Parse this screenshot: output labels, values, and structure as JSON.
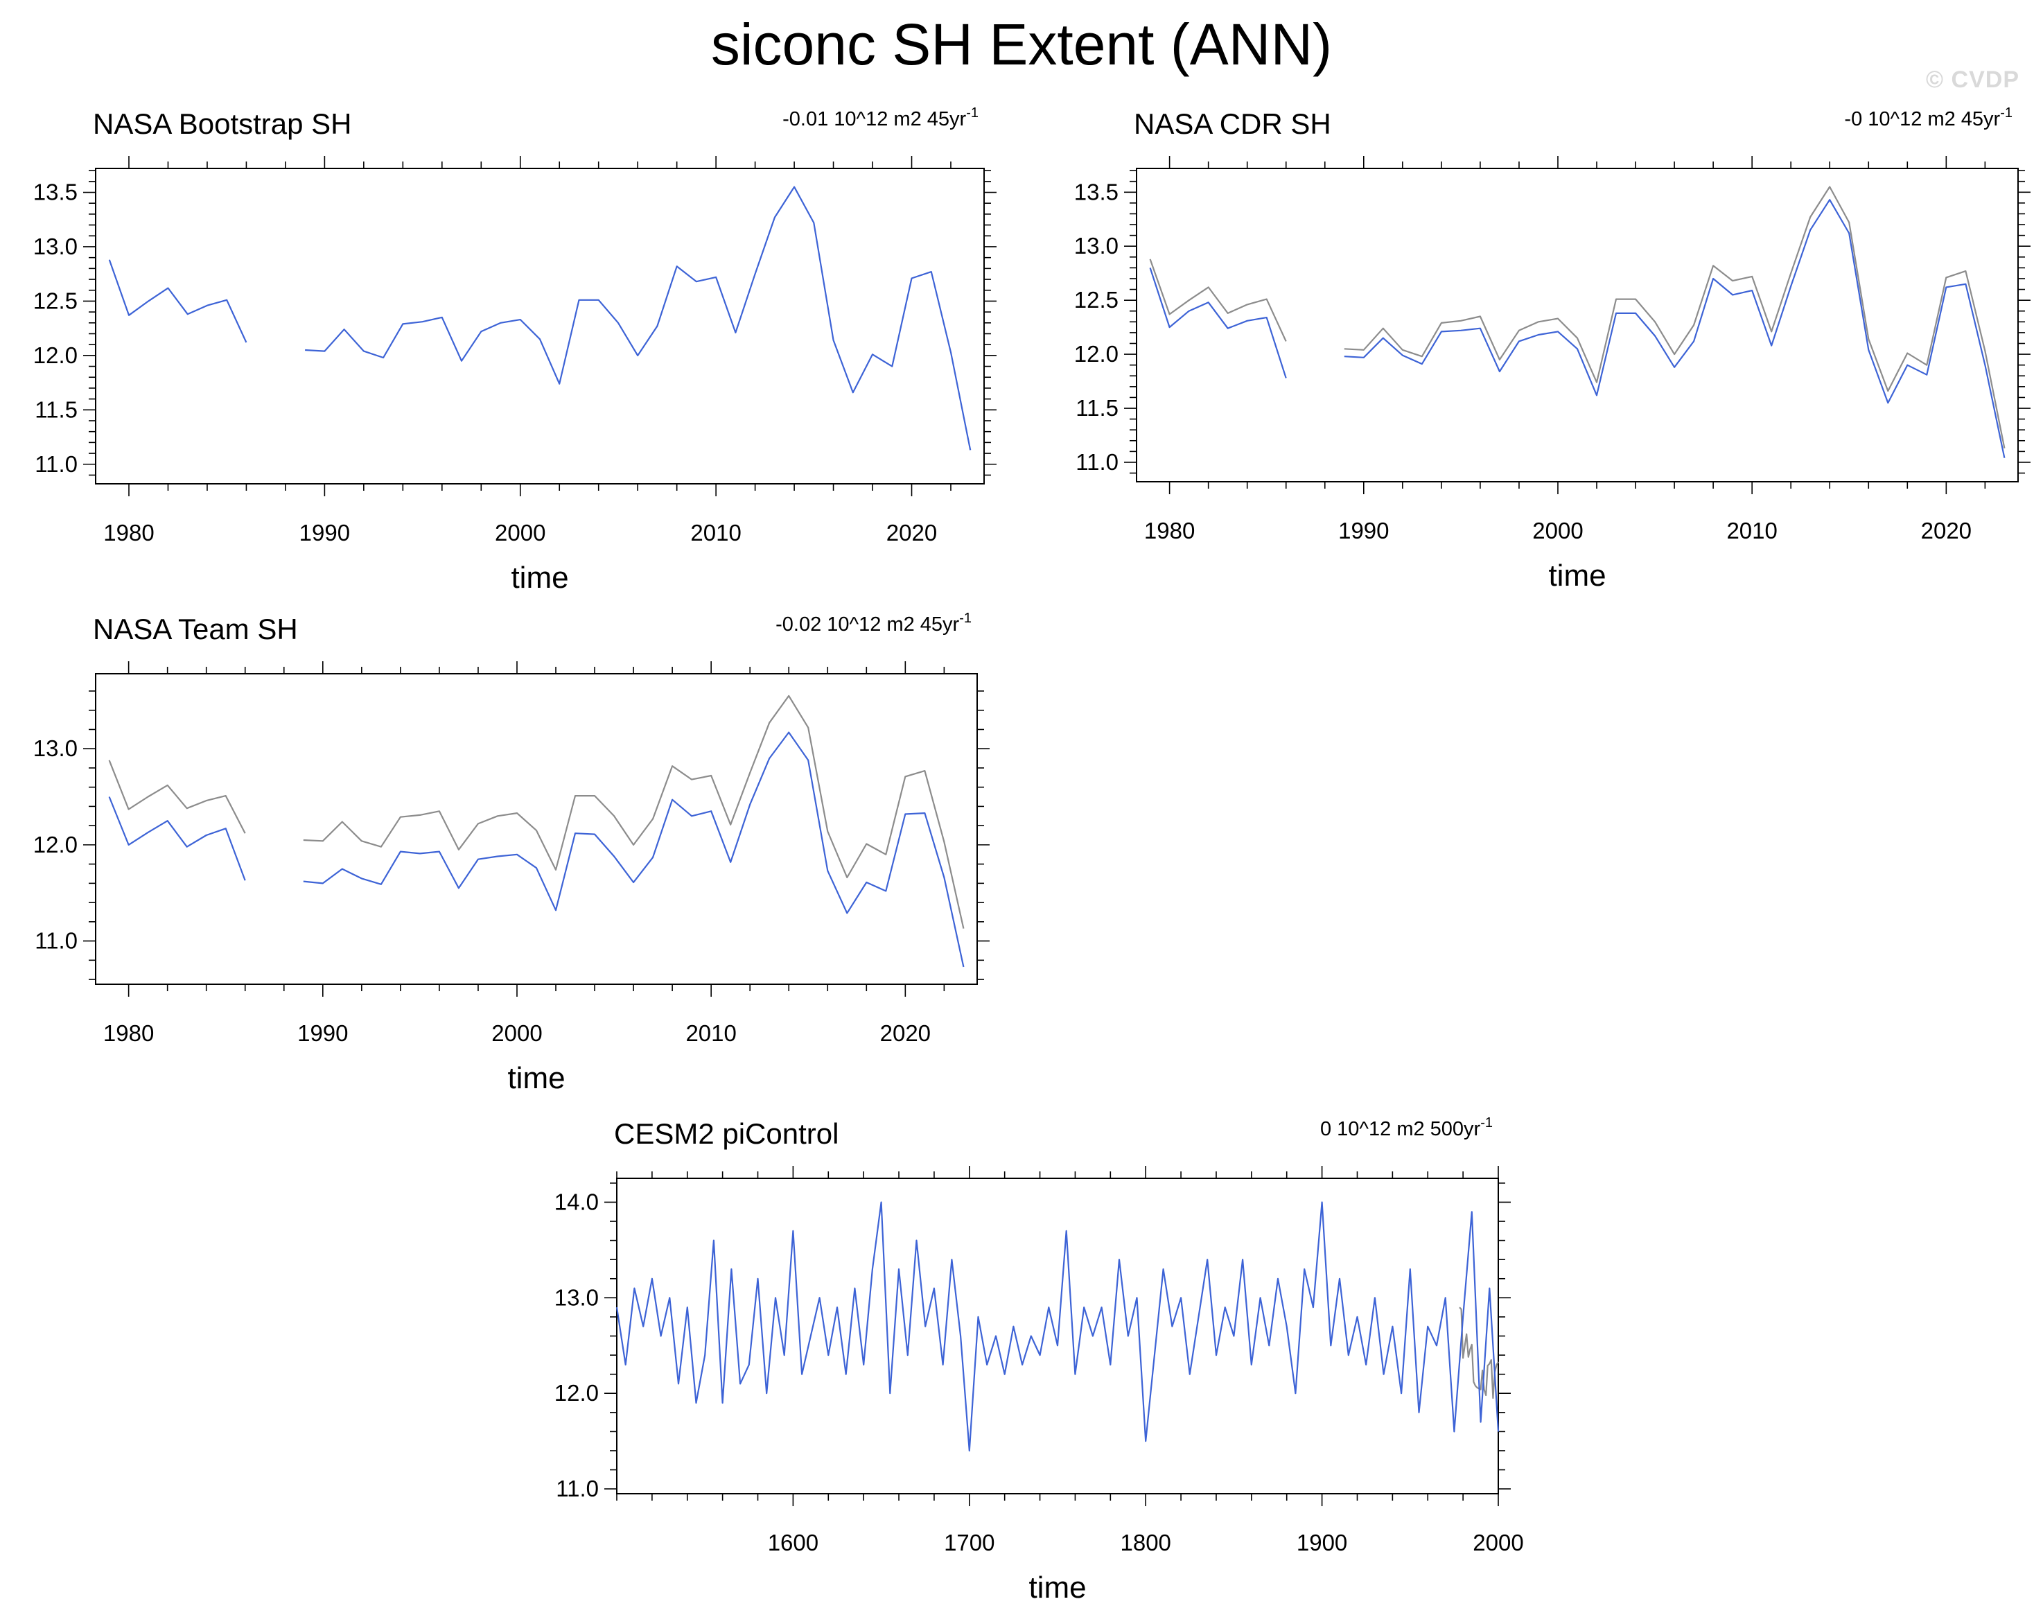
{
  "title": "siconc SH Extent (ANN)",
  "watermark": "© CVDP",
  "colors": {
    "series_main": "#3d63d6",
    "series_reference": "#8c8c8c",
    "axis": "#000000"
  },
  "chart_data": [
    {
      "type": "line",
      "title": "NASA Bootstrap SH",
      "trend_label": {
        "value": "-0.01 10^12 m2 45yr",
        "superscript": "-1"
      },
      "xlabel": "time",
      "ylabel": "",
      "xlim": [
        1978.3,
        2023.7
      ],
      "ylim": [
        10.82,
        13.72
      ],
      "xticks": [
        1980,
        1990,
        2000,
        2010,
        2020
      ],
      "xtick_labels": [
        "1980",
        "1990",
        "2000",
        "2010",
        "2020"
      ],
      "yticks": [
        11.0,
        11.5,
        12.0,
        12.5,
        13.0,
        13.5
      ],
      "ytick_labels": [
        "11.0",
        "11.5",
        "12.0",
        "12.5",
        "13.0",
        "13.5"
      ],
      "grid": false,
      "series": [
        {
          "role": "main",
          "x": [
            1979,
            1980,
            1981,
            1982,
            1983,
            1984,
            1985,
            1986,
            1987,
            1988,
            1989,
            1990,
            1991,
            1992,
            1993,
            1994,
            1995,
            1996,
            1997,
            1998,
            1999,
            2000,
            2001,
            2002,
            2003,
            2004,
            2005,
            2006,
            2007,
            2008,
            2009,
            2010,
            2011,
            2012,
            2013,
            2014,
            2015,
            2016,
            2017,
            2018,
            2019,
            2020,
            2021,
            2022,
            2023
          ],
          "y": [
            12.88,
            12.37,
            12.5,
            12.62,
            12.38,
            12.46,
            12.51,
            12.12,
            null,
            null,
            12.05,
            12.04,
            12.24,
            12.04,
            11.98,
            12.29,
            12.31,
            12.35,
            11.95,
            12.22,
            12.3,
            12.33,
            12.15,
            11.74,
            12.51,
            12.51,
            12.3,
            12.0,
            12.27,
            12.82,
            12.68,
            12.72,
            12.21,
            12.75,
            13.27,
            13.55,
            13.22,
            12.14,
            11.66,
            12.01,
            11.9,
            12.71,
            12.77,
            12.03,
            11.13
          ]
        }
      ]
    },
    {
      "type": "line",
      "title": "NASA CDR SH",
      "trend_label": {
        "value": "-0 10^12 m2 45yr",
        "superscript": "-1"
      },
      "xlabel": "time",
      "ylabel": "",
      "xlim": [
        1978.3,
        2023.7
      ],
      "ylim": [
        10.82,
        13.72
      ],
      "xticks": [
        1980,
        1990,
        2000,
        2010,
        2020
      ],
      "xtick_labels": [
        "1980",
        "1990",
        "2000",
        "2010",
        "2020"
      ],
      "yticks": [
        11.0,
        11.5,
        12.0,
        12.5,
        13.0,
        13.5
      ],
      "ytick_labels": [
        "11.0",
        "11.5",
        "12.0",
        "12.5",
        "13.0",
        "13.5"
      ],
      "grid": false,
      "series": [
        {
          "role": "reference",
          "x": [
            1979,
            1980,
            1981,
            1982,
            1983,
            1984,
            1985,
            1986,
            1987,
            1988,
            1989,
            1990,
            1991,
            1992,
            1993,
            1994,
            1995,
            1996,
            1997,
            1998,
            1999,
            2000,
            2001,
            2002,
            2003,
            2004,
            2005,
            2006,
            2007,
            2008,
            2009,
            2010,
            2011,
            2012,
            2013,
            2014,
            2015,
            2016,
            2017,
            2018,
            2019,
            2020,
            2021,
            2022,
            2023
          ],
          "y": [
            12.88,
            12.37,
            12.5,
            12.62,
            12.38,
            12.46,
            12.51,
            12.12,
            null,
            null,
            12.05,
            12.04,
            12.24,
            12.04,
            11.98,
            12.29,
            12.31,
            12.35,
            11.95,
            12.22,
            12.3,
            12.33,
            12.15,
            11.74,
            12.51,
            12.51,
            12.3,
            12.0,
            12.27,
            12.82,
            12.68,
            12.72,
            12.21,
            12.75,
            13.27,
            13.55,
            13.22,
            12.14,
            11.66,
            12.01,
            11.9,
            12.71,
            12.77,
            12.03,
            11.13
          ]
        },
        {
          "role": "main",
          "x": [
            1979,
            1980,
            1981,
            1982,
            1983,
            1984,
            1985,
            1986,
            1987,
            1988,
            1989,
            1990,
            1991,
            1992,
            1993,
            1994,
            1995,
            1996,
            1997,
            1998,
            1999,
            2000,
            2001,
            2002,
            2003,
            2004,
            2005,
            2006,
            2007,
            2008,
            2009,
            2010,
            2011,
            2012,
            2013,
            2014,
            2015,
            2016,
            2017,
            2018,
            2019,
            2020,
            2021,
            2022,
            2023
          ],
          "y": [
            12.8,
            12.25,
            12.4,
            12.48,
            12.24,
            12.31,
            12.34,
            11.78,
            null,
            null,
            11.98,
            11.97,
            12.15,
            11.99,
            11.91,
            12.21,
            12.22,
            12.24,
            11.84,
            12.12,
            12.18,
            12.21,
            12.05,
            11.62,
            12.38,
            12.38,
            12.17,
            11.88,
            12.12,
            12.7,
            12.55,
            12.59,
            12.08,
            12.63,
            13.15,
            13.43,
            13.12,
            12.04,
            11.55,
            11.9,
            11.81,
            12.62,
            12.65,
            11.9,
            11.04
          ]
        }
      ]
    },
    {
      "type": "line",
      "title": "NASA Team SH",
      "trend_label": {
        "value": "-0.02 10^12 m2 45yr",
        "superscript": "-1"
      },
      "xlabel": "time",
      "ylabel": "",
      "xlim": [
        1978.3,
        2023.7
      ],
      "ylim": [
        10.55,
        13.78
      ],
      "xticks": [
        1980,
        1990,
        2000,
        2010,
        2020
      ],
      "xtick_labels": [
        "1980",
        "1990",
        "2000",
        "2010",
        "2020"
      ],
      "yticks": [
        11.0,
        12.0,
        13.0
      ],
      "ytick_labels": [
        "11.0",
        "12.0",
        "13.0"
      ],
      "grid": false,
      "series": [
        {
          "role": "reference",
          "x": [
            1979,
            1980,
            1981,
            1982,
            1983,
            1984,
            1985,
            1986,
            1987,
            1988,
            1989,
            1990,
            1991,
            1992,
            1993,
            1994,
            1995,
            1996,
            1997,
            1998,
            1999,
            2000,
            2001,
            2002,
            2003,
            2004,
            2005,
            2006,
            2007,
            2008,
            2009,
            2010,
            2011,
            2012,
            2013,
            2014,
            2015,
            2016,
            2017,
            2018,
            2019,
            2020,
            2021,
            2022,
            2023
          ],
          "y": [
            12.88,
            12.37,
            12.5,
            12.62,
            12.38,
            12.46,
            12.51,
            12.12,
            null,
            null,
            12.05,
            12.04,
            12.24,
            12.04,
            11.98,
            12.29,
            12.31,
            12.35,
            11.95,
            12.22,
            12.3,
            12.33,
            12.15,
            11.74,
            12.51,
            12.51,
            12.3,
            12.0,
            12.27,
            12.82,
            12.68,
            12.72,
            12.21,
            12.75,
            13.27,
            13.55,
            13.22,
            12.14,
            11.66,
            12.01,
            11.9,
            12.71,
            12.77,
            12.03,
            11.13
          ]
        },
        {
          "role": "main",
          "x": [
            1979,
            1980,
            1981,
            1982,
            1983,
            1984,
            1985,
            1986,
            1987,
            1988,
            1989,
            1990,
            1991,
            1992,
            1993,
            1994,
            1995,
            1996,
            1997,
            1998,
            1999,
            2000,
            2001,
            2002,
            2003,
            2004,
            2005,
            2006,
            2007,
            2008,
            2009,
            2010,
            2011,
            2012,
            2013,
            2014,
            2015,
            2016,
            2017,
            2018,
            2019,
            2020,
            2021,
            2022,
            2023
          ],
          "y": [
            12.5,
            12.0,
            12.13,
            12.25,
            11.98,
            12.1,
            12.17,
            11.63,
            null,
            null,
            11.62,
            11.6,
            11.75,
            11.65,
            11.59,
            11.93,
            11.91,
            11.93,
            11.55,
            11.85,
            11.88,
            11.9,
            11.76,
            11.32,
            12.12,
            12.11,
            11.88,
            11.61,
            11.87,
            12.47,
            12.3,
            12.35,
            11.82,
            12.42,
            12.9,
            13.17,
            12.88,
            11.73,
            11.29,
            11.61,
            11.52,
            12.32,
            12.33,
            11.66,
            10.73
          ]
        }
      ]
    },
    {
      "type": "line",
      "title": "CESM2 piControl",
      "trend_label": {
        "value": "0 10^12 m2 500yr",
        "superscript": "-1"
      },
      "xlabel": "time",
      "ylabel": "",
      "xlim": [
        1500,
        2000
      ],
      "ylim": [
        10.95,
        14.25
      ],
      "xticks": [
        1600,
        1700,
        1800,
        1900,
        2000
      ],
      "xtick_labels": [
        "1600",
        "1700",
        "1800",
        "1900",
        "2000"
      ],
      "yticks": [
        11.0,
        12.0,
        13.0,
        14.0
      ],
      "ytick_labels": [
        "11.0",
        "12.0",
        "13.0",
        "14.0"
      ],
      "grid": false,
      "series": [
        {
          "role": "reference",
          "x": [
            1978,
            1979,
            1980,
            1981,
            1982,
            1983,
            1984,
            1985,
            1986,
            1987,
            1988,
            1989,
            1990,
            1991,
            1992,
            1993,
            1994,
            1995,
            1996,
            1997,
            1998,
            1999,
            2000
          ],
          "y": [
            12.9,
            12.88,
            12.37,
            12.5,
            12.62,
            12.38,
            12.46,
            12.51,
            12.12,
            12.08,
            12.06,
            12.05,
            12.04,
            12.24,
            12.04,
            11.98,
            12.29,
            12.31,
            12.35,
            11.95,
            12.22,
            12.3,
            12.33
          ]
        },
        {
          "role": "main",
          "x": [
            1500,
            1505,
            1510,
            1515,
            1520,
            1525,
            1530,
            1535,
            1540,
            1545,
            1550,
            1555,
            1560,
            1565,
            1570,
            1575,
            1580,
            1585,
            1590,
            1595,
            1600,
            1605,
            1610,
            1615,
            1620,
            1625,
            1630,
            1635,
            1640,
            1645,
            1650,
            1655,
            1660,
            1665,
            1670,
            1675,
            1680,
            1685,
            1690,
            1695,
            1700,
            1705,
            1710,
            1715,
            1720,
            1725,
            1730,
            1735,
            1740,
            1745,
            1750,
            1755,
            1760,
            1765,
            1770,
            1775,
            1780,
            1785,
            1790,
            1795,
            1800,
            1805,
            1810,
            1815,
            1820,
            1825,
            1830,
            1835,
            1840,
            1845,
            1850,
            1855,
            1860,
            1865,
            1870,
            1875,
            1880,
            1885,
            1890,
            1895,
            1900,
            1905,
            1910,
            1915,
            1920,
            1925,
            1930,
            1935,
            1940,
            1945,
            1950,
            1955,
            1960,
            1965,
            1970,
            1975,
            1980,
            1985,
            1990,
            1995,
            2000
          ],
          "y": [
            12.9,
            12.3,
            13.1,
            12.7,
            13.2,
            12.6,
            13.0,
            12.1,
            12.9,
            11.9,
            12.4,
            13.6,
            11.9,
            13.3,
            12.1,
            12.3,
            13.2,
            12.0,
            13.0,
            12.4,
            13.7,
            12.2,
            12.6,
            13.0,
            12.4,
            12.9,
            12.2,
            13.1,
            12.3,
            13.3,
            14.0,
            12.0,
            13.3,
            12.4,
            13.6,
            12.7,
            13.1,
            12.3,
            13.4,
            12.6,
            11.4,
            12.8,
            12.3,
            12.6,
            12.2,
            12.7,
            12.3,
            12.6,
            12.4,
            12.9,
            12.5,
            13.7,
            12.2,
            12.9,
            12.6,
            12.9,
            12.3,
            13.4,
            12.6,
            13.0,
            11.5,
            12.4,
            13.3,
            12.7,
            13.0,
            12.2,
            12.8,
            13.4,
            12.4,
            12.9,
            12.6,
            13.4,
            12.3,
            13.0,
            12.5,
            13.2,
            12.7,
            12.0,
            13.3,
            12.9,
            14.0,
            12.5,
            13.2,
            12.4,
            12.8,
            12.3,
            13.0,
            12.2,
            12.7,
            12.0,
            13.3,
            11.8,
            12.7,
            12.5,
            13.0,
            11.6,
            12.8,
            13.9,
            11.7,
            13.1,
            11.6
          ]
        }
      ]
    }
  ]
}
